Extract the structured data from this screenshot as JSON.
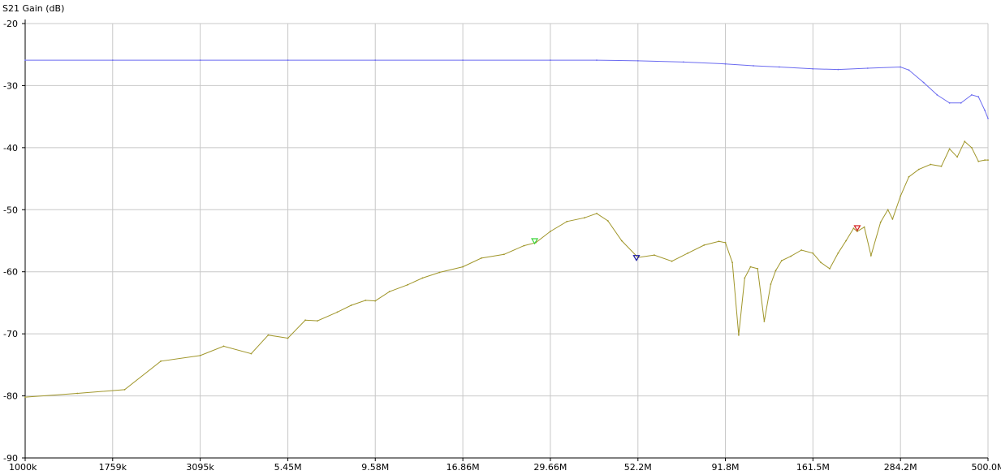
{
  "chart_data": {
    "type": "line",
    "ylabel": "S21 Gain (dB)",
    "xscale": "log",
    "xlim_hz": [
      1000000,
      500000000
    ],
    "ylim": [
      -90,
      -20
    ],
    "grid": true,
    "x_tick_labels": [
      "1000k",
      "1759k",
      "3095k",
      "5.45M",
      "9.58M",
      "16.86M",
      "29.66M",
      "52.2M",
      "91.8M",
      "161.5M",
      "284.2M",
      "500.0M"
    ],
    "x_tick_values_hz": [
      1000000,
      1759000,
      3095000,
      5450000,
      9580000,
      16860000,
      29660000,
      52200000,
      91800000,
      161500000,
      284200000,
      500000000
    ],
    "y_tick_values": [
      -20,
      -30,
      -40,
      -50,
      -60,
      -70,
      -80,
      -90
    ],
    "series": [
      {
        "color": "#6b6bf0",
        "x_hz": [
          1000000,
          1759000,
          3095000,
          5450000,
          9580000,
          16860000,
          29660000,
          40000000,
          52200000,
          70000000,
          91800000,
          110000000,
          130000000,
          161500000,
          190000000,
          230000000,
          284200000,
          300000000,
          330000000,
          360000000,
          390000000,
          420000000,
          450000000,
          470000000,
          490000000,
          500000000
        ],
        "y": [
          -25.9,
          -25.9,
          -25.9,
          -25.9,
          -25.9,
          -25.9,
          -25.9,
          -25.9,
          -26.0,
          -26.2,
          -26.5,
          -26.8,
          -27.0,
          -27.3,
          -27.4,
          -27.2,
          -27.0,
          -27.5,
          -29.5,
          -31.5,
          -32.8,
          -32.8,
          -31.5,
          -31.8,
          -34.0,
          -35.3
        ]
      },
      {
        "color": "#a0962a",
        "x_hz": [
          1000000,
          1400000,
          1900000,
          2400000,
          3095000,
          3600000,
          4300000,
          4800000,
          5450000,
          6100000,
          6600000,
          7500000,
          8200000,
          9000000,
          9580000,
          10500000,
          11800000,
          13000000,
          14500000,
          16860000,
          19000000,
          22000000,
          25000000,
          27000000,
          29660000,
          33000000,
          37000000,
          40000000,
          43000000,
          47000000,
          52200000,
          58000000,
          65000000,
          72000000,
          80000000,
          88000000,
          91800000,
          96000000,
          100000000,
          104000000,
          108000000,
          113000000,
          118000000,
          123000000,
          127000000,
          132000000,
          140000000,
          150000000,
          161500000,
          170000000,
          180000000,
          190000000,
          200000000,
          210000000,
          215000000,
          225000000,
          235000000,
          250000000,
          262000000,
          270000000,
          284200000,
          300000000,
          320000000,
          345000000,
          370000000,
          390000000,
          410000000,
          430000000,
          450000000,
          470000000,
          490000000,
          500000000
        ],
        "y": [
          -80.2,
          -79.6,
          -79.0,
          -74.4,
          -73.5,
          -72.0,
          -73.2,
          -70.2,
          -70.7,
          -67.8,
          -67.9,
          -66.5,
          -65.4,
          -64.6,
          -64.7,
          -63.2,
          -62.1,
          -61.0,
          -60.1,
          -59.2,
          -57.8,
          -57.2,
          -55.8,
          -55.3,
          -53.5,
          -51.9,
          -51.3,
          -50.6,
          -51.8,
          -55.0,
          -57.7,
          -57.3,
          -58.3,
          -57.0,
          -55.7,
          -55.1,
          -55.3,
          -58.5,
          -70.2,
          -61.0,
          -59.2,
          -59.5,
          -68.0,
          -62.0,
          -59.8,
          -58.2,
          -57.5,
          -56.5,
          -57.0,
          -58.5,
          -59.5,
          -57.0,
          -55.0,
          -53.0,
          -53.5,
          -52.8,
          -57.4,
          -52.0,
          -50.0,
          -51.5,
          -47.8,
          -44.7,
          -43.5,
          -42.7,
          -43.0,
          -40.2,
          -41.5,
          -39.0,
          -40.0,
          -42.2,
          -42.0,
          -42.0
        ]
      }
    ],
    "markers": [
      {
        "x_hz": 26800000,
        "y": -55.2,
        "color": "#3ad43a"
      },
      {
        "x_hz": 51700000,
        "y": -57.9,
        "color": "#1a1aa0"
      },
      {
        "x_hz": 215000000,
        "y": -53.1,
        "color": "#d42020"
      }
    ]
  }
}
